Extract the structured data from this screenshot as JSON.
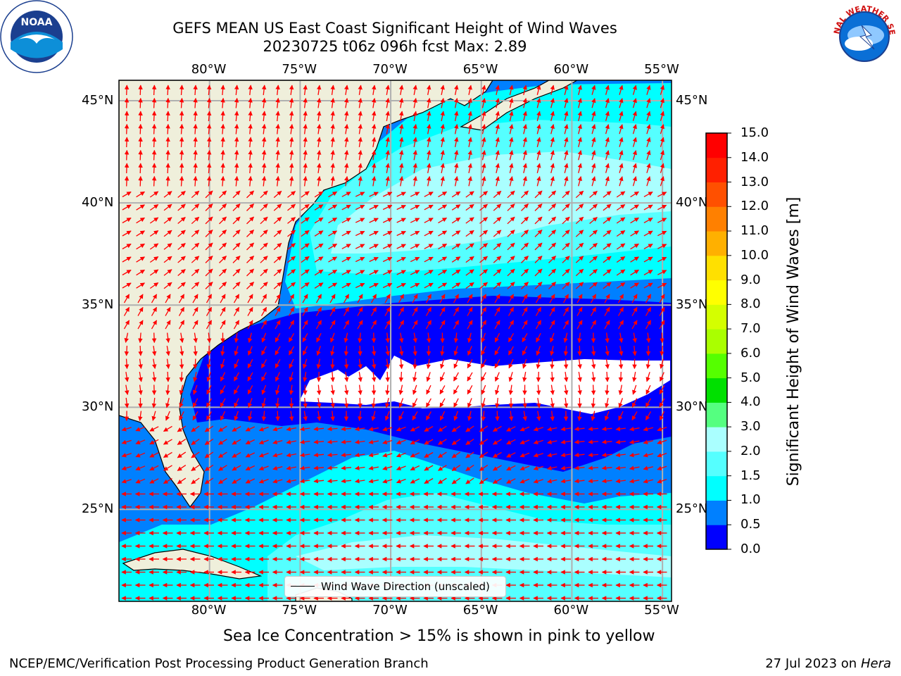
{
  "header": {
    "title_line1": "GEFS MEAN US East Coast Significant Height of Wind Waves",
    "title_line2": "20230725 t06z 096h fcst   Max: 2.89",
    "left_logo": "noaa-logo",
    "right_logo": "national-weather-service-logo",
    "left_logo_text": "NOAA",
    "right_logo_text": "NATIONAL WEATHER SERVICE"
  },
  "map": {
    "lon_labels": [
      "80°W",
      "75°W",
      "70°W",
      "65°W",
      "60°W",
      "55°W"
    ],
    "lat_labels": [
      "45°N",
      "40°N",
      "35°N",
      "30°N",
      "25°N"
    ],
    "lon_range": [
      -85,
      -54.5
    ],
    "lat_range": [
      20.5,
      46
    ],
    "land_color": "#efefdb",
    "legend_label": "Wind Wave Direction (unscaled)",
    "arrow_color": "#ff0000"
  },
  "colorbar": {
    "label": "Significant Height of Wind Waves [m]",
    "ticks": [
      "15.0",
      "14.0",
      "13.0",
      "12.0",
      "11.0",
      "10.0",
      "9.0",
      "8.0",
      "7.0",
      "6.0",
      "5.0",
      "4.0",
      "3.0",
      "2.0",
      "1.5",
      "1.0",
      "0.5",
      "0.0"
    ],
    "colors": [
      "#0000ff",
      "#0080ff",
      "#00ffff",
      "#55ffff",
      "#aaffff",
      "#55ff80",
      "#00e000",
      "#55ff00",
      "#aaff00",
      "#d4ff00",
      "#ffff00",
      "#ffe000",
      "#ffb000",
      "#ff8000",
      "#ff5000",
      "#ff2000",
      "#ff0000"
    ]
  },
  "notes": {
    "sea_ice": "Sea Ice Concentration > 15% is shown in pink to yellow",
    "footer_left": "NCEP/EMC/Verification Post Processing Product Generation Branch",
    "footer_date": "27 Jul 2023 on ",
    "footer_host": "Hera"
  }
}
